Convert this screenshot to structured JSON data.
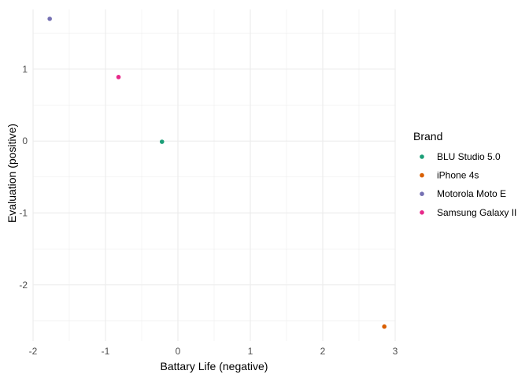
{
  "chart_data": {
    "type": "scatter",
    "title": "",
    "xlabel": "Battary Life (negative)",
    "ylabel": "Evaluation (positive)",
    "xlim": [
      -2.0,
      3.0
    ],
    "ylim": [
      -2.78,
      1.83
    ],
    "x_ticks": [
      -2,
      -1,
      0,
      1,
      2,
      3
    ],
    "y_ticks": [
      -2,
      -1,
      0,
      1
    ],
    "x_tick_labels": [
      "-2",
      "-1",
      "0",
      "1",
      "2",
      "3"
    ],
    "y_tick_labels": [
      "-2",
      "-1",
      "0",
      "1"
    ],
    "grid": true,
    "legend": {
      "title": "Brand",
      "position": "right"
    },
    "series": [
      {
        "name": "BLU Studio 5.0",
        "color": "#1b9e77",
        "x": [
          -0.22
        ],
        "y": [
          -0.01
        ]
      },
      {
        "name": "iPhone 4s",
        "color": "#d95f02",
        "x": [
          2.85
        ],
        "y": [
          -2.58
        ]
      },
      {
        "name": "Motorola Moto E",
        "color": "#7570b3",
        "x": [
          -1.77
        ],
        "y": [
          1.7
        ]
      },
      {
        "name": "Samsung Galaxy II",
        "color": "#e7298a",
        "x": [
          -0.82
        ],
        "y": [
          0.89
        ]
      }
    ]
  }
}
